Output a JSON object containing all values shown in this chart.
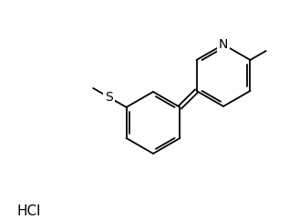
{
  "background_color": "#ffffff",
  "line_color": "#000000",
  "text_color": "#000000",
  "hcl_label": "HCl",
  "hcl_fontsize": 11,
  "S_label": "S",
  "N_label": "N",
  "label_fontsize": 10,
  "lw": 1.3
}
